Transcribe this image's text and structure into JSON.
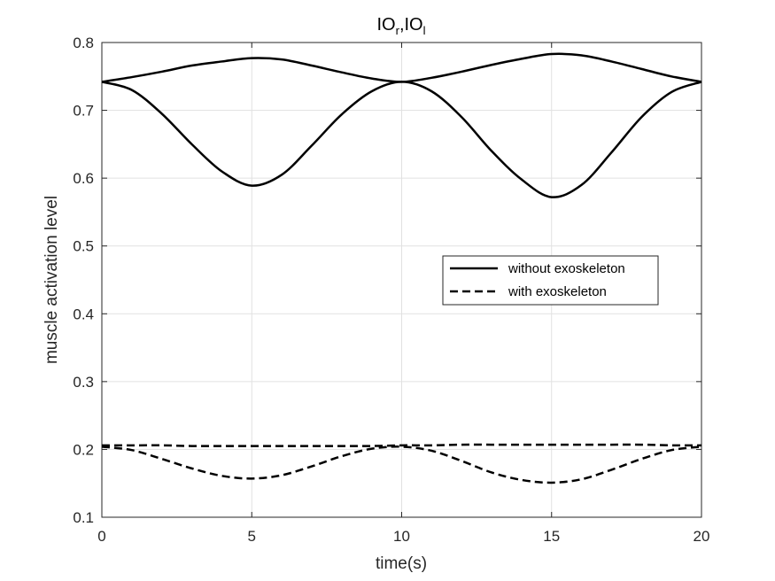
{
  "chart_data": {
    "type": "line",
    "title_main1": "IO",
    "title_sub1": "r",
    "title_sep": ",",
    "title_main2": "IO",
    "title_sub2": "l",
    "xlabel": "time(s)",
    "ylabel": "muscle activation level",
    "xlim": [
      0,
      20
    ],
    "ylim": [
      0.1,
      0.8
    ],
    "xticks": [
      "0",
      "5",
      "10",
      "15",
      "20"
    ],
    "xtick_values": [
      0,
      5,
      10,
      15,
      20
    ],
    "yticks": [
      "0.1",
      "0.2",
      "0.3",
      "0.4",
      "0.5",
      "0.6",
      "0.7",
      "0.8"
    ],
    "ytick_values": [
      0.1,
      0.2,
      0.3,
      0.4,
      0.5,
      0.6,
      0.7,
      0.8
    ],
    "grid": true,
    "legend": {
      "position": "center-right",
      "entries": [
        {
          "label": "without exoskeleton",
          "style": "solid"
        },
        {
          "label": "with exoskeleton",
          "style": "dashed"
        }
      ]
    },
    "series": [
      {
        "name": "without exoskeleton (IOr)",
        "style": "solid",
        "x": [
          0,
          1,
          2,
          3,
          4,
          5,
          6,
          7,
          8,
          9,
          10,
          11,
          12,
          13,
          14,
          15,
          16,
          17,
          18,
          19,
          20
        ],
        "y": [
          0.742,
          0.749,
          0.757,
          0.766,
          0.772,
          0.777,
          0.775,
          0.766,
          0.756,
          0.747,
          0.742,
          0.748,
          0.757,
          0.767,
          0.776,
          0.783,
          0.781,
          0.772,
          0.761,
          0.75,
          0.742
        ]
      },
      {
        "name": "without exoskeleton (IOl)",
        "style": "solid",
        "x": [
          0,
          1,
          2,
          3,
          4,
          5,
          6,
          7,
          8,
          9,
          10,
          11,
          12,
          13,
          14,
          15,
          16,
          17,
          18,
          19,
          20
        ],
        "y": [
          0.742,
          0.73,
          0.695,
          0.65,
          0.61,
          0.589,
          0.605,
          0.648,
          0.694,
          0.728,
          0.742,
          0.728,
          0.69,
          0.64,
          0.598,
          0.572,
          0.59,
          0.638,
          0.69,
          0.727,
          0.742
        ]
      },
      {
        "name": "with exoskeleton (IOr)",
        "style": "dashed",
        "x": [
          0,
          1,
          2,
          3,
          4,
          5,
          6,
          7,
          8,
          9,
          10,
          11,
          12,
          13,
          14,
          15,
          16,
          17,
          18,
          19,
          20
        ],
        "y": [
          0.206,
          0.206,
          0.206,
          0.205,
          0.205,
          0.205,
          0.205,
          0.205,
          0.205,
          0.205,
          0.206,
          0.206,
          0.207,
          0.207,
          0.207,
          0.207,
          0.207,
          0.207,
          0.207,
          0.206,
          0.206
        ]
      },
      {
        "name": "with exoskeleton (IOl)",
        "style": "dashed",
        "x": [
          0,
          1,
          2,
          3,
          4,
          5,
          6,
          7,
          8,
          9,
          10,
          11,
          12,
          13,
          14,
          15,
          16,
          17,
          18,
          19,
          20
        ],
        "y": [
          0.204,
          0.199,
          0.186,
          0.172,
          0.161,
          0.157,
          0.162,
          0.175,
          0.19,
          0.201,
          0.204,
          0.198,
          0.183,
          0.166,
          0.155,
          0.151,
          0.156,
          0.17,
          0.186,
          0.199,
          0.204
        ]
      }
    ]
  }
}
